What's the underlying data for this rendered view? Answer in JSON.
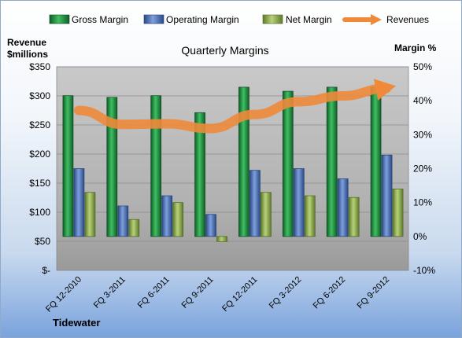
{
  "chart_data": {
    "type": "bar",
    "title": "Quarterly Margins",
    "left_axis_title_line1": "Revenue",
    "left_axis_title_line2": "$millions",
    "right_axis_title": "Margin %",
    "company": "Tidewater",
    "categories": [
      "FQ 12-2010",
      "FQ 3-2011",
      "FQ 6-2011",
      "FQ 9-2011",
      "FQ 12-2011",
      "FQ 3-2012",
      "FQ 6-2012",
      "FQ 9-2012"
    ],
    "left_axis": {
      "ylim": [
        0,
        350
      ],
      "ticks": [
        0,
        50,
        100,
        150,
        200,
        250,
        300,
        350
      ],
      "tick_labels": [
        "$-",
        "$50",
        "$100",
        "$150",
        "$200",
        "$250",
        "$300",
        "$350"
      ]
    },
    "right_axis": {
      "ylim": [
        -10,
        50
      ],
      "ticks": [
        -10,
        0,
        10,
        20,
        30,
        40,
        50
      ],
      "tick_labels": [
        "-10%",
        "0%",
        "10%",
        "20%",
        "30%",
        "40%",
        "50%"
      ]
    },
    "series": [
      {
        "name": "Gross Margin",
        "axis": "right",
        "color": "#1e8a3e",
        "values": [
          41.5,
          41,
          41.5,
          36.5,
          44,
          42.8,
          44,
          44
        ]
      },
      {
        "name": "Operating Margin",
        "axis": "right",
        "color": "#4a6fb5",
        "values": [
          20,
          9,
          12,
          6.5,
          19.5,
          20,
          17,
          24
        ]
      },
      {
        "name": "Net Margin",
        "axis": "right",
        "color": "#8fae4b",
        "values": [
          13,
          5,
          10,
          -1.5,
          13,
          12,
          11.5,
          14
        ]
      },
      {
        "name": "Revenues",
        "axis": "left",
        "type": "line",
        "color": "#ee8a3a",
        "values": [
          275,
          251,
          252,
          244,
          268,
          290,
          300,
          313
        ]
      }
    ],
    "legend_position": "top",
    "plot_background": "#b8b8b8"
  }
}
